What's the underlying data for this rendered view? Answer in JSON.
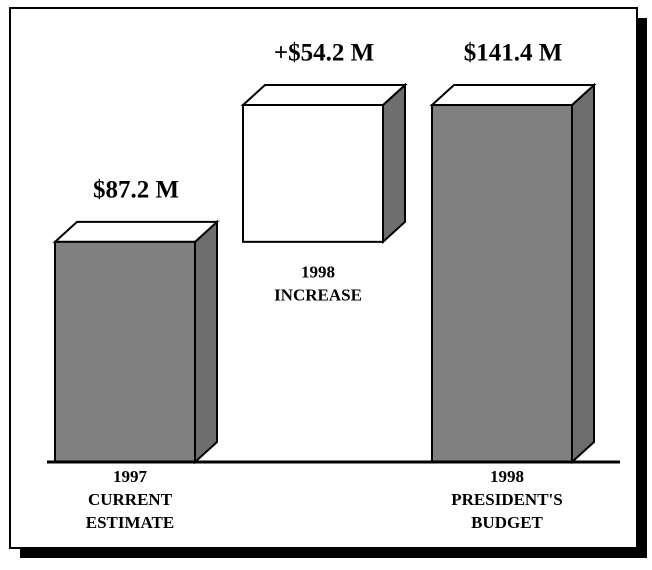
{
  "chart_data": {
    "type": "waterfall",
    "categories": [
      [
        "1997",
        "CURRENT",
        "ESTIMATE"
      ],
      [
        "1998",
        "INCREASE"
      ],
      [
        "1998",
        "PRESIDENT'S",
        "BUDGET"
      ]
    ],
    "values": [
      87.2,
      54.2,
      141.4
    ],
    "value_labels": [
      "$87.2 M",
      "+$54.2 M",
      "$141.4 M"
    ],
    "measure": [
      "absolute",
      "relative",
      "total"
    ],
    "colors": [
      "#808080",
      "#ffffff",
      "#808080"
    ],
    "side_color": "#6e6e6e",
    "top_color": "#ffffff"
  }
}
